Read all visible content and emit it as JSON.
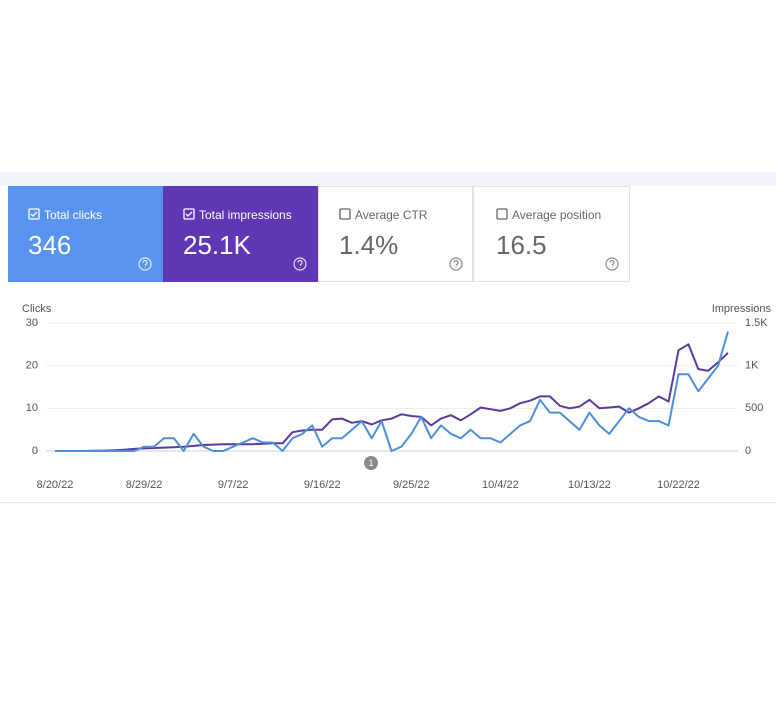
{
  "metrics": [
    {
      "label": "Total clicks",
      "value": "346"
    },
    {
      "label": "Total impressions",
      "value": "25.1K"
    },
    {
      "label": "Average CTR",
      "value": "1.4%"
    },
    {
      "label": "Average position",
      "value": "16.5"
    }
  ],
  "chart_data": {
    "type": "line",
    "y_label": "Clicks",
    "y2_label": "Impressions",
    "annotation": "1",
    "categories": [
      "8/20/22",
      null,
      null,
      null,
      null,
      null,
      null,
      null,
      null,
      "8/29/22",
      null,
      null,
      null,
      null,
      null,
      null,
      null,
      null,
      "9/7/22",
      null,
      null,
      null,
      null,
      null,
      null,
      null,
      null,
      "9/16/22",
      null,
      null,
      null,
      null,
      null,
      null,
      null,
      null,
      "9/25/22",
      null,
      null,
      null,
      null,
      null,
      null,
      null,
      null,
      "10/4/22",
      null,
      null,
      null,
      null,
      null,
      null,
      null,
      null,
      "10/13/22",
      null,
      null,
      null,
      null,
      null,
      null,
      null,
      null,
      "10/22/22",
      null,
      null,
      null,
      null,
      null
    ],
    "series": [
      {
        "name": "Clicks",
        "color": "#4d8fd8",
        "values": [
          0,
          0,
          0,
          0,
          0,
          0,
          0,
          0,
          0,
          1,
          1,
          3,
          3,
          0,
          4,
          1,
          0,
          0,
          1,
          2,
          3,
          2,
          2,
          0,
          3,
          4,
          6,
          1,
          3,
          3,
          5,
          7,
          3,
          7,
          0,
          1,
          4,
          8,
          3,
          6,
          4,
          3,
          5,
          3,
          3,
          2,
          4,
          6,
          7,
          12,
          9,
          9,
          7,
          5,
          9,
          6,
          4,
          7,
          10,
          8,
          7,
          7,
          6,
          18,
          18,
          14,
          17,
          20,
          28
        ]
      },
      {
        "name": "Impressions",
        "color": "#5b3a9e",
        "axis": "y2",
        "values": [
          0,
          0,
          0,
          0,
          3,
          5,
          8,
          15,
          25,
          30,
          35,
          40,
          45,
          50,
          60,
          70,
          75,
          80,
          80,
          80,
          80,
          85,
          90,
          90,
          220,
          240,
          250,
          250,
          370,
          380,
          330,
          350,
          310,
          360,
          380,
          430,
          410,
          400,
          300,
          380,
          420,
          360,
          430,
          510,
          490,
          470,
          500,
          560,
          590,
          640,
          640,
          530,
          500,
          520,
          600,
          500,
          510,
          520,
          450,
          500,
          560,
          640,
          580,
          1180,
          1250,
          960,
          940,
          1040,
          1150
        ]
      }
    ],
    "ylim": [
      0,
      30
    ],
    "yticks": [
      0,
      10,
      20,
      30
    ],
    "y2lim": [
      0,
      1500
    ],
    "y2ticks": [
      0,
      500,
      {
        "value": 1000,
        "label": "1K"
      },
      {
        "value": 1500,
        "label": "1.5K"
      }
    ],
    "grid": true
  }
}
